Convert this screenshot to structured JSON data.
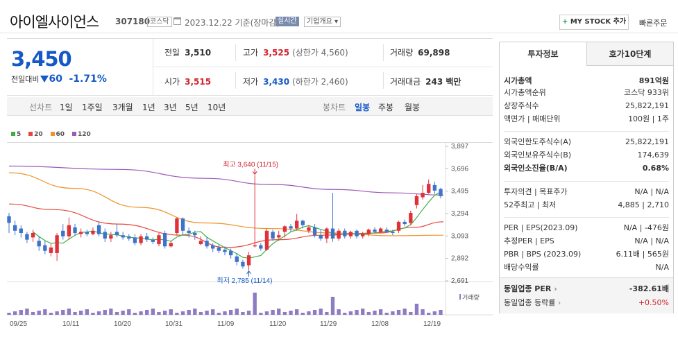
{
  "header": {
    "title": "아이엘사이언스",
    "code": "307180",
    "market_badge": "코스닥",
    "date": "2023.12.22",
    "basis": "기준(장마감)",
    "live_badge": "실시간",
    "corp_overview": "기업개요",
    "mystock_plus": "+",
    "mystock_label": "MY STOCK 추가",
    "quick_order": "빠른주문"
  },
  "quote": {
    "price": "3,450",
    "change_label": "전일대비",
    "change_value": "60",
    "change_pct": "-1.71%",
    "prev_close_label": "전일",
    "prev_close": "3,510",
    "high_label": "고가",
    "high": "3,525",
    "upper_limit": "(상한가 4,560)",
    "volume_label": "거래량",
    "volume": "69,898",
    "open_label": "시가",
    "open": "3,515",
    "low_label": "저가",
    "low": "3,430",
    "lower_limit": "(하한가 2,460)",
    "amount_label": "거래대금",
    "amount": "243 백만"
  },
  "tabs": {
    "line_label": "선차트",
    "line_items": [
      "1일",
      "1주일",
      "3개월",
      "1년",
      "3년",
      "5년",
      "10년"
    ],
    "candle_label": "봉차트",
    "candle_items": [
      "일봉",
      "주봉",
      "월봉"
    ],
    "active": "일봉"
  },
  "chart_data": {
    "type": "candlestick",
    "legend": [
      "5",
      "20",
      "60",
      "120"
    ],
    "ma_colors": {
      "5": "#3cb043",
      "20": "#e8453c",
      "60": "#f0932b",
      "120": "#9b59b6"
    },
    "up_color": "#e0313b",
    "down_color": "#3d73c8",
    "y_ticks": [
      3897,
      3696,
      3495,
      3294,
      3093,
      2892,
      2691
    ],
    "ylim": [
      2691,
      3897
    ],
    "x_ticks": [
      "09/25",
      "10/11",
      "10/20",
      "10/31",
      "11/09",
      "11/20",
      "11/29",
      "12/08",
      "12/19"
    ],
    "volume_label": "거래량",
    "annotation_high": "최고 3,640 (11/15)",
    "annotation_low": "최저 2,785 (11/14)",
    "candles": [
      [
        3270,
        3210,
        3300,
        3120
      ],
      [
        3190,
        3140,
        3230,
        3100
      ],
      [
        3160,
        3120,
        3190,
        3080
      ],
      [
        3110,
        3060,
        3130,
        3030
      ],
      [
        3080,
        3120,
        3150,
        3040
      ],
      [
        3050,
        3000,
        3090,
        2960
      ],
      [
        3010,
        2960,
        3050,
        2930
      ],
      [
        2940,
        2990,
        3020,
        2910
      ],
      [
        2940,
        3100,
        3120,
        2870
      ],
      [
        3140,
        3090,
        3200,
        3060
      ],
      [
        3090,
        3190,
        3260,
        3060
      ],
      [
        3170,
        3120,
        3200,
        3100
      ],
      [
        3110,
        3130,
        3160,
        3080
      ],
      [
        3130,
        3110,
        3150,
        3090
      ],
      [
        3110,
        3140,
        3170,
        3100
      ],
      [
        3190,
        3110,
        3220,
        3090
      ],
      [
        3130,
        3070,
        3160,
        3040
      ],
      [
        3070,
        3100,
        3130,
        3040
      ],
      [
        3130,
        3100,
        3200,
        3080
      ],
      [
        3100,
        3080,
        3130,
        3060
      ],
      [
        3090,
        3070,
        3110,
        3050
      ],
      [
        3080,
        3030,
        3110,
        3010
      ],
      [
        3030,
        3090,
        3110,
        3010
      ],
      [
        3090,
        3060,
        3120,
        3040
      ],
      [
        3060,
        3040,
        3080,
        3020
      ],
      [
        3020,
        3100,
        3120,
        3000
      ],
      [
        3120,
        3000,
        3140,
        2980
      ],
      [
        3000,
        3030,
        3050,
        2990
      ],
      [
        3120,
        3250,
        3260,
        3100
      ],
      [
        3250,
        3140,
        3260,
        3100
      ],
      [
        3140,
        3120,
        3170,
        3080
      ],
      [
        3120,
        3100,
        3140,
        3060
      ],
      [
        3020,
        3050,
        3090,
        3010
      ],
      [
        3050,
        3000,
        3080,
        2980
      ],
      [
        3010,
        2980,
        3030,
        2950
      ],
      [
        2990,
        2960,
        3010,
        2940
      ],
      [
        2970,
        2950,
        3000,
        2920
      ],
      [
        2960,
        2920,
        2980,
        2890
      ],
      [
        2910,
        2860,
        2940,
        2830
      ],
      [
        2860,
        2820,
        2880,
        2800
      ],
      [
        2830,
        2920,
        2950,
        2785
      ],
      [
        3000,
        3010,
        3640,
        2990
      ],
      [
        3010,
        2980,
        3030,
        2960
      ],
      [
        2970,
        3140,
        3160,
        2960
      ],
      [
        3130,
        3070,
        3150,
        3050
      ],
      [
        3080,
        3100,
        3140,
        3050
      ],
      [
        3130,
        3180,
        3190,
        3080
      ],
      [
        3180,
        3160,
        3200,
        3130
      ],
      [
        3160,
        3230,
        3290,
        3140
      ],
      [
        3230,
        3190,
        3240,
        3160
      ],
      [
        3140,
        3170,
        3190,
        3120
      ],
      [
        3170,
        3100,
        3200,
        3080
      ],
      [
        3100,
        3070,
        3150,
        3050
      ],
      [
        3070,
        3160,
        3170,
        3030
      ],
      [
        3160,
        3070,
        3480,
        3040
      ],
      [
        3070,
        3140,
        3160,
        3050
      ],
      [
        3140,
        3090,
        3160,
        3070
      ],
      [
        3090,
        3130,
        3140,
        3070
      ],
      [
        3140,
        3090,
        3150,
        3070
      ],
      [
        3090,
        3110,
        3130,
        3070
      ],
      [
        3110,
        3150,
        3160,
        3090
      ],
      [
        3150,
        3130,
        3170,
        3120
      ],
      [
        3130,
        3160,
        3170,
        3120
      ],
      [
        3150,
        3130,
        3170,
        3120
      ],
      [
        3130,
        3120,
        3150,
        3100
      ],
      [
        3140,
        3220,
        3230,
        3120
      ],
      [
        3220,
        3200,
        3240,
        3180
      ],
      [
        3210,
        3300,
        3320,
        3190
      ],
      [
        3370,
        3450,
        3470,
        3340
      ],
      [
        3440,
        3480,
        3550,
        3420
      ],
      [
        3480,
        3560,
        3600,
        3470
      ],
      [
        3550,
        3500,
        3580,
        3470
      ],
      [
        3515,
        3450,
        3525,
        3430
      ]
    ],
    "volume_spikes": [
      41,
      54,
      68
    ]
  },
  "panel": {
    "tab_active": "투자정보",
    "tab_other": "호가10단계",
    "rows": [
      {
        "label": "시가총액",
        "value": "891억원",
        "bold": true
      },
      {
        "label": "시가총액순위",
        "value": "코스닥 933위"
      },
      {
        "label": "상장주식수",
        "value": "25,822,191"
      },
      {
        "label": "액면가 | 매매단위",
        "value": "100원 | 1주"
      },
      {
        "label": "외국인한도주식수(A)",
        "value": "25,822,191"
      },
      {
        "label": "외국인보유주식수(B)",
        "value": "174,639"
      },
      {
        "label": "외국인소진율(B/A)",
        "value": "0.68%",
        "bold": true
      },
      {
        "label": "투자의견 | 목표주가",
        "value": "N/A | N/A"
      },
      {
        "label": "52주최고 | 최저",
        "value": "4,885 | 2,710"
      },
      {
        "label": "PER | EPS(2023.09)",
        "value": "N/A | -476원"
      },
      {
        "label": "추정PER | EPS",
        "value": "N/A | N/A"
      },
      {
        "label": "PBR | BPS (2023.09)",
        "value": "6.11배 | 565원"
      },
      {
        "label": "배당수익률",
        "value": "N/A"
      }
    ],
    "industry_per_label": "동일업종 PER",
    "industry_per_value": "-382.61배",
    "industry_rate_label": "동일업종 등락률",
    "industry_rate_value": "+0.50%"
  }
}
